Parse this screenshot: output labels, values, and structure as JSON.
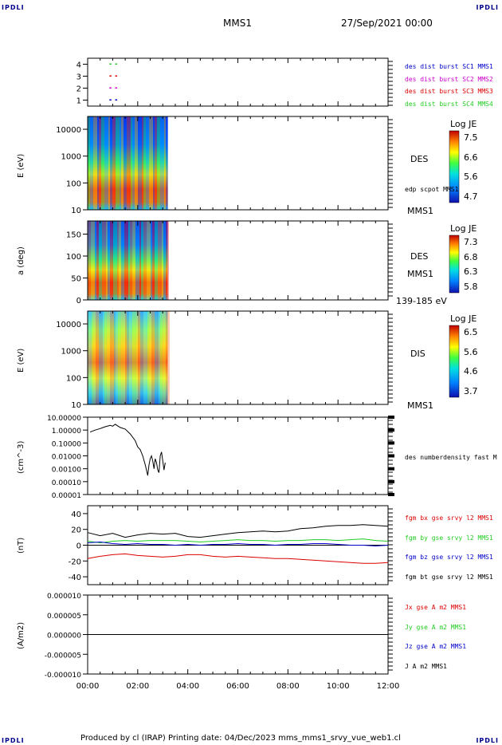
{
  "corners": {
    "tl": "IPDLI",
    "tr": "IPDLI",
    "bl": "IPDLI",
    "br": "IPDLI"
  },
  "header": {
    "spacecraft": "MMS1",
    "datetime": "27/Sep/2021 00:00"
  },
  "footer": {
    "text": "Produced by cl (IRAP)   Printing date: 04/Dec/2023   mms_mms1_srvy_vue_web1.cl"
  },
  "colors": {
    "red": "#dd0000",
    "green": "#22cc22",
    "blue": "#0000cc",
    "magenta": "#cc00cc",
    "black": "#000000"
  },
  "chart_data": [
    {
      "type": "scatter",
      "panel": "burst-availability",
      "yticks": [
        "1",
        "2",
        "3",
        "4"
      ],
      "ylim": [
        0.5,
        4.5
      ],
      "legend": [
        {
          "text": "des dist burst SC1 MMS1",
          "color": "#0000cc"
        },
        {
          "text": "des dist burst SC2 MMS2",
          "color": "#cc00cc"
        },
        {
          "text": "des dist burst SC3 MMS3",
          "color": "#dd0000"
        },
        {
          "text": "des dist burst SC4 MMS4",
          "color": "#22cc22"
        }
      ],
      "series": [
        {
          "color": "#0000cc",
          "y": 1,
          "x": [
            0.87,
            1.1
          ]
        },
        {
          "color": "#cc00cc",
          "y": 2,
          "x": [
            0.87,
            1.1
          ]
        },
        {
          "color": "#dd0000",
          "y": 3,
          "x": [
            0.87,
            1.1
          ]
        },
        {
          "color": "#22cc22",
          "y": 4,
          "x": [
            0.87,
            1.1
          ]
        }
      ]
    },
    {
      "type": "heatmap",
      "panel": "des-energy",
      "ylabel": "E (eV)",
      "yticks": [
        "10",
        "100",
        "1000",
        "10000"
      ],
      "ylim": [
        10,
        30000
      ],
      "xlim_data": [
        0,
        3.2
      ],
      "side_label": "DES",
      "sub_label": "edp scpot MMS1",
      "bottom_label": "MMS1",
      "colorbar": {
        "title": "Log JE",
        "ticks": [
          "7.5",
          "6.6",
          "5.6",
          "4.7"
        ]
      }
    },
    {
      "type": "heatmap",
      "panel": "des-pitch",
      "ylabel": "a (deg)",
      "yticks": [
        "0",
        "50",
        "100",
        "150"
      ],
      "ylim": [
        0,
        180
      ],
      "xlim_data": [
        0,
        3.2
      ],
      "side_label": "DES",
      "sub_label": "MMS1",
      "bottom_label": "139-185 eV",
      "colorbar": {
        "title": "Log JE",
        "ticks": [
          "7.3",
          "6.8",
          "6.3",
          "5.8"
        ]
      }
    },
    {
      "type": "heatmap",
      "panel": "dis-energy",
      "ylabel": "E (eV)",
      "yticks": [
        "10",
        "100",
        "1000",
        "10000"
      ],
      "ylim": [
        10,
        30000
      ],
      "xlim_data": [
        0,
        3.2
      ],
      "side_label": "DIS",
      "bottom_label": "MMS1",
      "colorbar": {
        "title": "Log JE",
        "ticks": [
          "6.5",
          "5.6",
          "4.6",
          "3.7"
        ]
      }
    },
    {
      "type": "line",
      "panel": "density",
      "ylabel": "(cm^-3)",
      "yticks": [
        "10.00000",
        "1.00000",
        "0.10000",
        "0.01000",
        "0.00100",
        "0.00010",
        "0.00001"
      ],
      "ylim": [
        1e-05,
        10
      ],
      "legend": [
        {
          "text": "des numberdensity fast M",
          "color": "#000000"
        }
      ],
      "series": [
        {
          "name": "des numberdensity fast M",
          "color": "#000000",
          "x": [
            0.1,
            0.3,
            0.5,
            0.7,
            0.9,
            1.0,
            1.1,
            1.3,
            1.5,
            1.7,
            1.9,
            2.0,
            2.1,
            2.2,
            2.3,
            2.4,
            2.45,
            2.5,
            2.55,
            2.6,
            2.65,
            2.7,
            2.75,
            2.8,
            2.85,
            2.9,
            2.95,
            3.0,
            3.05,
            3.1
          ],
          "y": [
            0.7,
            1.0,
            1.3,
            1.8,
            2.3,
            2.0,
            2.8,
            1.6,
            1.2,
            0.5,
            0.15,
            0.05,
            0.03,
            0.01,
            0.002,
            0.0003,
            0.002,
            0.006,
            0.01,
            0.004,
            0.001,
            0.006,
            0.003,
            0.0008,
            0.0005,
            0.01,
            0.02,
            0.004,
            0.0008,
            0.003
          ]
        }
      ]
    },
    {
      "type": "line",
      "panel": "magnetic-field",
      "ylabel": "(nT)",
      "yticks": [
        "40",
        "20",
        "0",
        "-20",
        "-40"
      ],
      "ylim": [
        -50,
        50
      ],
      "legend": [
        {
          "text": "fgm bx gse srvy l2 MMS1",
          "color": "#dd0000"
        },
        {
          "text": "fgm by gse srvy l2 MMS1",
          "color": "#22cc22"
        },
        {
          "text": "fgm bz gse srvy l2 MMS1",
          "color": "#0000cc"
        },
        {
          "text": "fgm bt gse srvy l2 MMS1",
          "color": "#000000"
        }
      ],
      "series": [
        {
          "name": "fgm bt gse srvy l2 MMS1",
          "color": "#000000",
          "x": [
            0,
            0.5,
            1,
            1.5,
            2,
            2.5,
            3,
            3.5,
            4,
            4.5,
            5,
            5.5,
            6,
            6.5,
            7,
            7.5,
            8,
            8.5,
            9,
            9.5,
            10,
            10.5,
            11,
            11.5,
            12
          ],
          "y": [
            16,
            12,
            15,
            10,
            13,
            15,
            14,
            15,
            11,
            10,
            12,
            14,
            16,
            17,
            18,
            17,
            18,
            21,
            22,
            24,
            25,
            25,
            26,
            25,
            24
          ]
        },
        {
          "name": "fgm by gse srvy l2 MMS1",
          "color": "#22cc22",
          "x": [
            0,
            0.5,
            1,
            1.5,
            2,
            2.5,
            3,
            3.5,
            4,
            4.5,
            5,
            5.5,
            6,
            6.5,
            7,
            7.5,
            8,
            8.5,
            9,
            9.5,
            10,
            10.5,
            11,
            11.5,
            12
          ],
          "y": [
            5,
            3,
            5,
            6,
            5,
            6,
            6,
            6,
            5,
            4,
            5,
            6,
            7,
            6,
            6,
            5,
            6,
            6,
            7,
            7,
            6,
            7,
            8,
            6,
            5
          ]
        },
        {
          "name": "fgm bz gse srvy l2 MMS1",
          "color": "#0000cc",
          "x": [
            0,
            0.5,
            1,
            1.5,
            2,
            2.5,
            3,
            3.5,
            4,
            4.5,
            5,
            5.5,
            6,
            6.5,
            7,
            7.5,
            8,
            8.5,
            9,
            9.5,
            10,
            10.5,
            11,
            11.5,
            12
          ],
          "y": [
            3,
            4,
            2,
            1,
            2,
            1,
            1,
            0,
            1,
            0,
            1,
            1,
            2,
            1,
            1,
            0,
            1,
            1,
            2,
            2,
            1,
            0,
            0,
            -1,
            0
          ]
        },
        {
          "name": "fgm bx gse srvy l2 MMS1",
          "color": "#dd0000",
          "x": [
            0,
            0.5,
            1,
            1.5,
            2,
            2.5,
            3,
            3.5,
            4,
            4.5,
            5,
            5.5,
            6,
            6.5,
            7,
            7.5,
            8,
            8.5,
            9,
            9.5,
            10,
            10.5,
            11,
            11.5,
            12
          ],
          "y": [
            -17,
            -14,
            -12,
            -11,
            -13,
            -14,
            -15,
            -14,
            -12,
            -12,
            -14,
            -15,
            -14,
            -15,
            -16,
            -17,
            -17,
            -18,
            -19,
            -20,
            -21,
            -22,
            -23,
            -23,
            -22
          ]
        }
      ]
    },
    {
      "type": "line",
      "panel": "current-density",
      "ylabel": "(A/m2)",
      "yticks": [
        "0.000010",
        "0.000005",
        "0.000000",
        "-0.000005",
        "-0.000010"
      ],
      "ylim": [
        -1e-05,
        1e-05
      ],
      "legend": [
        {
          "text": "Jx gse A m2 MMS1",
          "color": "#dd0000"
        },
        {
          "text": "Jy gse A m2 MMS1",
          "color": "#22cc22"
        },
        {
          "text": "Jz gse A m2 MMS1",
          "color": "#0000cc"
        },
        {
          "text": "J A m2 MMS1",
          "color": "#000000"
        }
      ],
      "series": [
        {
          "name": "J A m2 MMS1",
          "color": "#000000",
          "x": [
            0,
            12
          ],
          "y": [
            0,
            0
          ]
        }
      ]
    }
  ],
  "xaxis": {
    "ticks": [
      "00:00",
      "02:00",
      "04:00",
      "06:00",
      "08:00",
      "10:00",
      "12:00"
    ],
    "xlim": [
      0,
      12
    ]
  }
}
